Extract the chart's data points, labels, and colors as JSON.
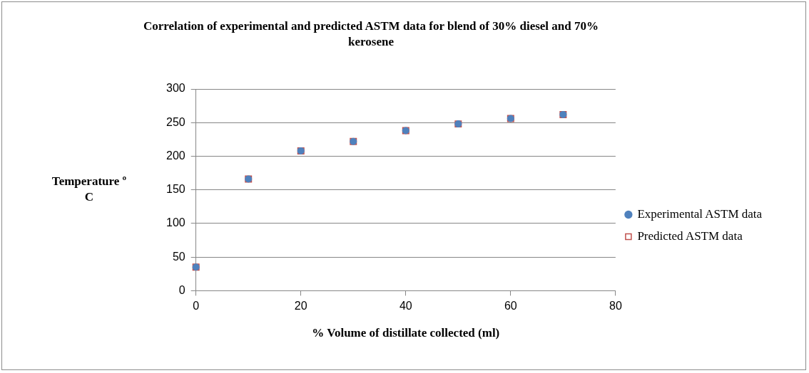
{
  "chart_data": {
    "type": "scatter",
    "title": "Correlation of experimental and predicted ASTM data for blend of 30% diesel and 70% kerosene",
    "xlabel": "% Volume of distillate collected (ml)",
    "ylabel": "Temperature º C",
    "x": [
      0,
      10,
      20,
      30,
      40,
      50,
      60,
      70
    ],
    "series": [
      {
        "name": "Experimental ASTM data",
        "color": "#4f81bd",
        "marker": "circle",
        "values": [
          35,
          166,
          208,
          222,
          238,
          248,
          256,
          262
        ]
      },
      {
        "name": "Predicted ASTM data",
        "color": "#c0504d",
        "marker": "square",
        "values": [
          35,
          166,
          208,
          222,
          238,
          248,
          256,
          262
        ]
      }
    ],
    "xlim": [
      0,
      80
    ],
    "xticks": [
      0,
      20,
      40,
      60,
      80
    ],
    "ylim": [
      0,
      300
    ],
    "yticks": [
      0,
      50,
      100,
      150,
      200,
      250,
      300
    ],
    "grid": "y",
    "legend": "right"
  }
}
